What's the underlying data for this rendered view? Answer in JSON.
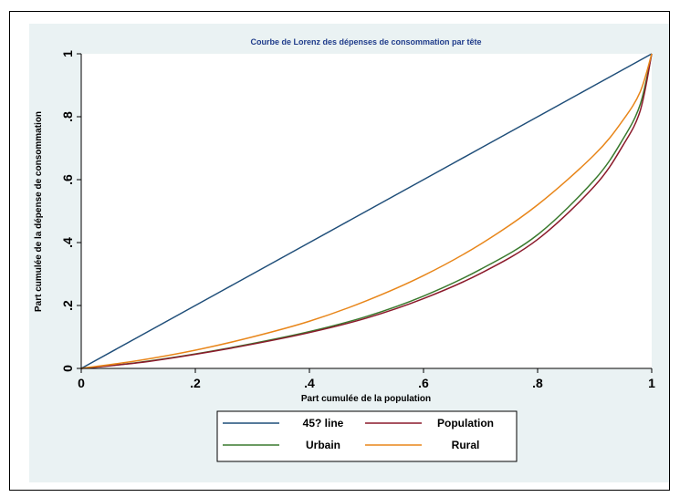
{
  "chart_data": {
    "type": "line",
    "title": "Courbe de Lorenz des dépenses de consommation par tête",
    "xlabel": "Part cumulée de la population",
    "ylabel": "Part cumulée de la dépense de consommation",
    "xlim": [
      0,
      1
    ],
    "ylim": [
      0,
      1
    ],
    "x_ticks": [
      "0",
      ".2",
      ".4",
      ".6",
      ".8",
      "1"
    ],
    "y_ticks": [
      "0",
      ".2",
      ".4",
      ".6",
      ".8",
      "1"
    ],
    "grid": false,
    "legend_position": "bottom",
    "series": [
      {
        "name": "45? line",
        "color": "#1f4e79",
        "x": [
          0,
          0.1,
          0.2,
          0.3,
          0.4,
          0.5,
          0.6,
          0.7,
          0.8,
          0.9,
          0.95,
          1.0
        ],
        "y": [
          0,
          0.1,
          0.2,
          0.3,
          0.4,
          0.5,
          0.6,
          0.7,
          0.8,
          0.9,
          0.95,
          1.0
        ]
      },
      {
        "name": "Population",
        "color": "#8b1a2b",
        "x": [
          0,
          0.1,
          0.2,
          0.3,
          0.4,
          0.5,
          0.6,
          0.7,
          0.8,
          0.9,
          0.95,
          0.98,
          1.0
        ],
        "y": [
          0,
          0.018,
          0.045,
          0.077,
          0.114,
          0.16,
          0.222,
          0.302,
          0.41,
          0.58,
          0.71,
          0.82,
          1.0
        ]
      },
      {
        "name": "Urbain",
        "color": "#3a7a2e",
        "x": [
          0,
          0.1,
          0.2,
          0.3,
          0.4,
          0.5,
          0.6,
          0.7,
          0.8,
          0.9,
          0.95,
          0.98,
          1.0
        ],
        "y": [
          0,
          0.019,
          0.046,
          0.079,
          0.117,
          0.165,
          0.23,
          0.315,
          0.425,
          0.6,
          0.73,
          0.84,
          1.0
        ]
      },
      {
        "name": "Rural",
        "color": "#e8861a",
        "x": [
          0,
          0.1,
          0.2,
          0.3,
          0.4,
          0.5,
          0.6,
          0.7,
          0.8,
          0.9,
          0.95,
          0.98,
          1.0
        ],
        "y": [
          0,
          0.025,
          0.058,
          0.1,
          0.15,
          0.215,
          0.295,
          0.395,
          0.52,
          0.68,
          0.79,
          0.88,
          1.0
        ]
      }
    ]
  }
}
